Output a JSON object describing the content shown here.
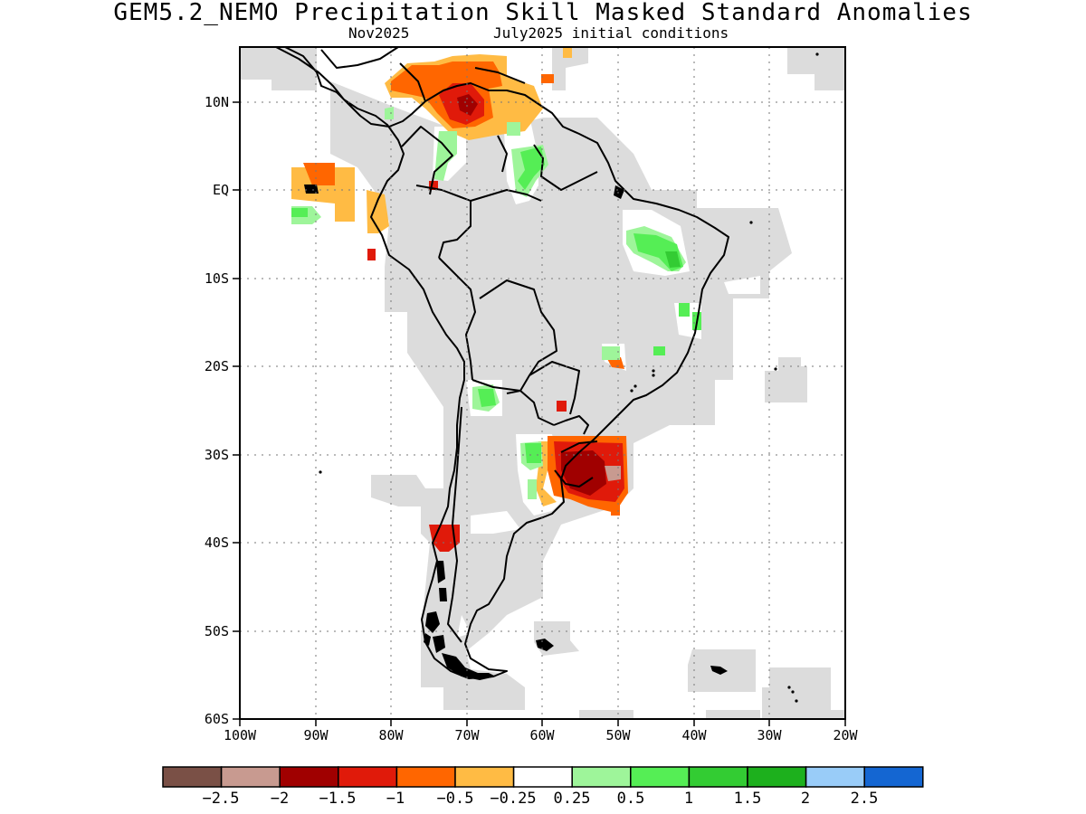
{
  "title": "GEM5.2_NEMO Precipitation Skill Masked Standard Anomalies",
  "subtitle_left": "Nov2025",
  "subtitle_right": "July2025 initial conditions",
  "lat_ticks": [
    "10N",
    "EQ",
    "10S",
    "20S",
    "30S",
    "40S",
    "50S",
    "60S"
  ],
  "lon_ticks": [
    "100W",
    "90W",
    "80W",
    "70W",
    "60W",
    "50W",
    "40W",
    "30W",
    "20W"
  ],
  "colorbar": {
    "colors": [
      "#7a5046",
      "#c89a90",
      "#a00000",
      "#e01a0a",
      "#ff6600",
      "#ffbb44",
      "#ffffff",
      "#9ef59a",
      "#55ee55",
      "#33cc33",
      "#1db01d",
      "#99ccf8",
      "#1466d2"
    ],
    "labels": [
      "−2.5",
      "−2",
      "−1.5",
      "−1",
      "−0.5",
      "−0.25",
      "0.25",
      "0.5",
      "1",
      "1.5",
      "2",
      "2.5"
    ]
  },
  "mask_color": "#dcdcdc"
}
